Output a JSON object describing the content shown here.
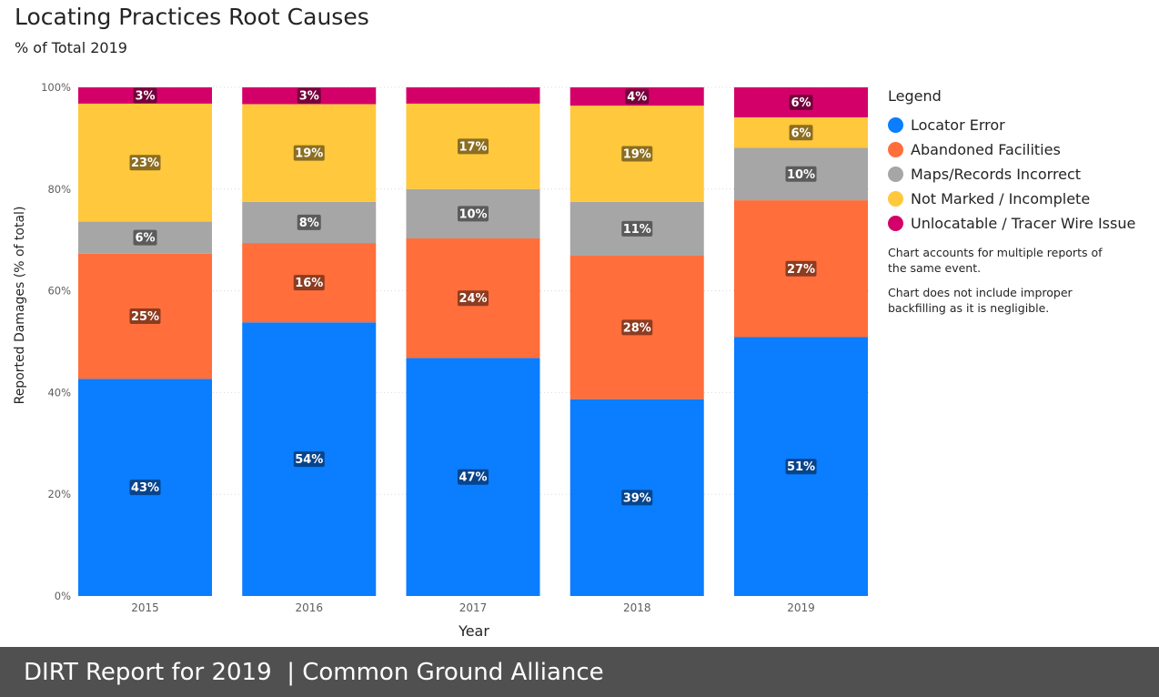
{
  "title": "Locating Practices Root Causes",
  "subtitle": "% of Total 2019",
  "footer": {
    "report": "DIRT Report for 2019",
    "separator": "|",
    "org": "Common Ground Alliance"
  },
  "legend": {
    "title": "Legend",
    "notes": [
      "Chart accounts for multiple reports of the same event.",
      "Chart does not include improper backfilling as it is negligible."
    ]
  },
  "chart_data": {
    "type": "bar",
    "stacked": true,
    "categories": [
      "2015",
      "2016",
      "2017",
      "2018",
      "2019"
    ],
    "xlabel": "Year",
    "ylabel": "Reported Damages (% of total)",
    "ylim": [
      0,
      100
    ],
    "yticks": [
      "0%",
      "20%",
      "40%",
      "60%",
      "80%",
      "100%"
    ],
    "grid": true,
    "legend_position": "right",
    "series": [
      {
        "name": "Locator Error",
        "color": "#0B7DFF",
        "values": [
          42.7,
          53.8,
          46.8,
          38.7,
          50.9
        ],
        "labels": [
          "43%",
          "54%",
          "47%",
          "39%",
          "51%"
        ]
      },
      {
        "name": "Abandoned Facilities",
        "color": "#FF6E3B",
        "values": [
          24.6,
          15.6,
          23.5,
          28.2,
          26.9
        ],
        "labels": [
          "25%",
          "16%",
          "24%",
          "28%",
          "27%"
        ]
      },
      {
        "name": "Maps/Records Incorrect",
        "color": "#A6A6A6",
        "values": [
          6.3,
          8.1,
          9.7,
          10.6,
          10.3
        ],
        "labels": [
          "6%",
          "8%",
          "10%",
          "11%",
          "10%"
        ]
      },
      {
        "name": "Not Marked / Incomplete",
        "color": "#FFC83D",
        "values": [
          23.2,
          19.2,
          16.8,
          18.9,
          6.0
        ],
        "labels": [
          "23%",
          "19%",
          "17%",
          "19%",
          "6%"
        ]
      },
      {
        "name": "Unlocatable / Tracer Wire Issue",
        "color": "#D4006A",
        "values": [
          3.2,
          3.3,
          3.2,
          3.6,
          5.9
        ],
        "labels": [
          "3%",
          "3%",
          "",
          "4%",
          "6%"
        ]
      }
    ]
  }
}
